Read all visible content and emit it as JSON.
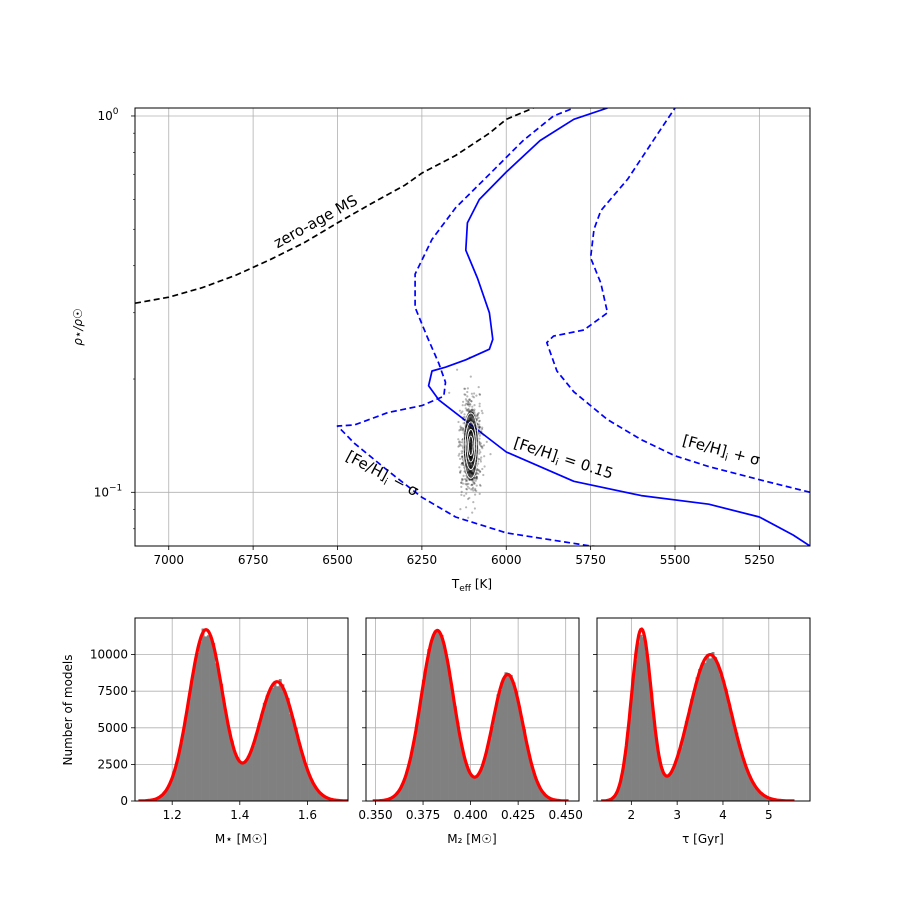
{
  "chart_data": [
    {
      "type": "line",
      "xlabel_main": "T",
      "xlabel_sub": "eff",
      "xlabel_unit": "[K]",
      "ylabel": "ρ⋆/ρ☉",
      "xlim": [
        7100,
        5100
      ],
      "ylim": [
        0.072,
        1.05
      ],
      "yscale": "log",
      "grid": true,
      "xticks": [
        7000,
        6750,
        6500,
        6250,
        6000,
        5750,
        5500,
        5250
      ],
      "yticks": [
        {
          "value": 1.0,
          "base": "10",
          "exp": "0"
        },
        {
          "value": 0.1,
          "base": "10",
          "exp": "−1"
        }
      ],
      "series": [
        {
          "style": "dashed",
          "color": "#000000",
          "x": [
            7100,
            7000,
            6900,
            6800,
            6700,
            6600,
            6500,
            6400,
            6300,
            6250,
            6150,
            6050,
            6000,
            5920
          ],
          "y": [
            0.318,
            0.33,
            0.35,
            0.378,
            0.415,
            0.46,
            0.52,
            0.585,
            0.655,
            0.705,
            0.785,
            0.9,
            0.98,
            1.05
          ]
        },
        {
          "style": "solid",
          "color": "#0000ff",
          "x": [
            5100,
            5150,
            5250,
            5400,
            5600,
            5800,
            6000,
            6100,
            6200,
            6230,
            6220,
            6180,
            6120,
            6050,
            6040,
            6050,
            6085,
            6120,
            6115,
            6080,
            6000,
            5900,
            5800,
            5700
          ],
          "y": [
            0.072,
            0.077,
            0.086,
            0.093,
            0.098,
            0.107,
            0.128,
            0.15,
            0.176,
            0.192,
            0.21,
            0.215,
            0.225,
            0.24,
            0.255,
            0.3,
            0.37,
            0.44,
            0.52,
            0.6,
            0.71,
            0.86,
            0.98,
            1.05
          ]
        },
        {
          "style": "dashed",
          "color": "#0000ff",
          "x": [
            5250,
            5500,
            5750,
            6000,
            6150,
            6250,
            6350,
            6450,
            6500,
            6450,
            6350,
            6250,
            6185,
            6180,
            6200,
            6235,
            6270,
            6270,
            6220,
            6150,
            6050,
            5950,
            5860,
            5800
          ],
          "y": [
            0.0675,
            0.069,
            0.072,
            0.078,
            0.086,
            0.097,
            0.114,
            0.135,
            0.15,
            0.151,
            0.163,
            0.17,
            0.18,
            0.196,
            0.22,
            0.26,
            0.31,
            0.38,
            0.47,
            0.57,
            0.7,
            0.86,
            1.0,
            1.05
          ]
        },
        {
          "style": "dashed",
          "color": "#0000ff",
          "x": [
            5100,
            5250,
            5400,
            5500,
            5600,
            5700,
            5800,
            5850,
            5880,
            5860,
            5770,
            5700,
            5720,
            5750,
            5740,
            5720,
            5640,
            5550,
            5500
          ],
          "y": [
            0.1,
            0.108,
            0.117,
            0.125,
            0.138,
            0.156,
            0.185,
            0.21,
            0.25,
            0.26,
            0.27,
            0.3,
            0.36,
            0.42,
            0.5,
            0.56,
            0.68,
            0.9,
            1.05
          ]
        }
      ],
      "scatter_cloud": {
        "center_teff": 6105,
        "center_rho": 0.133,
        "teff_min": 6150,
        "teff_max": 6060,
        "rho_min": 0.09,
        "rho_max": 0.2
      },
      "annotations": [
        {
          "text": "zero-age MS"
        },
        {
          "text_pre": "[Fe/H]",
          "sub": "i",
          "text_post": " = 0.15"
        },
        {
          "text_pre": "[Fe/H]",
          "sub": "i",
          "text_post": " + σ"
        },
        {
          "text_pre": "[Fe/H]",
          "sub": "i",
          "text_post": " − σ"
        }
      ]
    },
    {
      "type": "bar",
      "ylabel": "Number of models",
      "xlabel": "M⋆ [M☉]",
      "xlim": [
        1.09,
        1.72
      ],
      "ylim": [
        0,
        12500
      ],
      "xticks": [
        "1.2",
        "1.4",
        "1.6"
      ],
      "xtick_values": [
        1.2,
        1.4,
        1.6
      ],
      "yticks": [
        "0",
        "2500",
        "5000",
        "7500",
        "10000"
      ],
      "ytick_values": [
        0,
        2500,
        5000,
        7500,
        10000
      ],
      "grid": true,
      "histogram_fill": "#808080",
      "fit_color": "#ff0000",
      "components": [
        {
          "mean": 1.3,
          "sigma": 0.05,
          "amplitude": 11700
        },
        {
          "mean": 1.51,
          "sigma": 0.055,
          "amplitude": 8150
        }
      ]
    },
    {
      "type": "bar",
      "xlabel": "M₂ [M☉]",
      "xlim": [
        0.345,
        0.457
      ],
      "ylim": [
        0,
        12500
      ],
      "xticks": [
        "0.350",
        "0.375",
        "0.400",
        "0.425",
        "0.450"
      ],
      "xtick_values": [
        0.35,
        0.375,
        0.4,
        0.425,
        0.45
      ],
      "ytick_values": [
        0,
        2500,
        5000,
        7500,
        10000
      ],
      "grid": true,
      "histogram_fill": "#808080",
      "fit_color": "#ff0000",
      "components": [
        {
          "mean": 0.3825,
          "sigma": 0.0085,
          "amplitude": 11650
        },
        {
          "mean": 0.4195,
          "sigma": 0.008,
          "amplitude": 8650
        }
      ]
    },
    {
      "type": "bar",
      "xlabel": "τ [Gyr]",
      "xlim": [
        1.25,
        5.9
      ],
      "ylim": [
        0,
        12500
      ],
      "xticks": [
        "2",
        "3",
        "4",
        "5"
      ],
      "xtick_values": [
        2,
        3,
        4,
        5
      ],
      "ytick_values": [
        0,
        2500,
        5000,
        7500,
        10000
      ],
      "grid": true,
      "histogram_fill": "#808080",
      "fit_color": "#ff0000",
      "components": [
        {
          "mean": 2.22,
          "sigma": 0.22,
          "amplitude": 11700
        },
        {
          "mean": 3.72,
          "sigma": 0.46,
          "amplitude": 10000
        }
      ]
    }
  ]
}
